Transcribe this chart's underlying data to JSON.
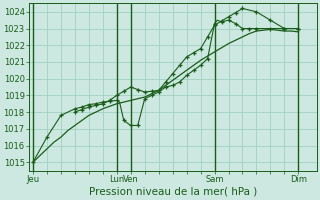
{
  "bg_color": "#cce8e0",
  "plot_bg_color": "#cce8e0",
  "grid_color": "#99ccbb",
  "line_color": "#1a5c1a",
  "tick_color": "#1a5c1a",
  "xlabel": "Pression niveau de la mer( hPa )",
  "xlabel_fontsize": 7.5,
  "tick_fontsize": 6.0,
  "ylim": [
    1014.5,
    1024.5
  ],
  "yticks": [
    1015,
    1016,
    1017,
    1018,
    1019,
    1020,
    1021,
    1022,
    1023,
    1024
  ],
  "xlim": [
    -0.3,
    20.3
  ],
  "xtick_labels": [
    "Jeu",
    "",
    "",
    "",
    "",
    "",
    "Lun",
    "Ven",
    "",
    "",
    "",
    "",
    "",
    "Sam",
    "",
    "",
    "",
    "",
    "",
    "Dim"
  ],
  "xtick_positions": [
    0,
    1,
    2,
    3,
    4,
    5,
    6,
    7,
    8,
    9,
    10,
    11,
    12,
    13,
    14,
    15,
    16,
    17,
    18,
    19
  ],
  "vlines_dark": [
    0,
    6,
    7,
    13,
    19
  ],
  "line1_x": [
    0,
    0.5,
    1,
    1.5,
    2,
    2.5,
    3,
    3.5,
    4,
    4.5,
    5,
    5.5,
    6,
    6.5,
    7,
    7.5,
    8,
    8.5,
    9,
    9.5,
    10,
    10.5,
    11,
    11.5,
    12,
    12.5,
    13,
    13.5,
    14,
    14.5,
    15,
    15.5,
    16,
    16.5,
    17,
    17.5,
    18,
    18.5,
    19
  ],
  "line1_y": [
    1015.0,
    1015.4,
    1015.8,
    1016.2,
    1016.5,
    1016.9,
    1017.2,
    1017.5,
    1017.8,
    1018.0,
    1018.2,
    1018.35,
    1018.5,
    1018.6,
    1018.7,
    1018.8,
    1018.9,
    1019.1,
    1019.3,
    1019.6,
    1019.9,
    1020.2,
    1020.5,
    1020.8,
    1021.1,
    1021.35,
    1021.6,
    1021.85,
    1022.1,
    1022.3,
    1022.5,
    1022.7,
    1022.85,
    1022.9,
    1022.95,
    1022.9,
    1022.85,
    1022.85,
    1022.8
  ],
  "line2_x": [
    0,
    1,
    2,
    3,
    3.5,
    4,
    4.5,
    5,
    5.5,
    6,
    6.2,
    6.5,
    7,
    7.5,
    8,
    8.5,
    9,
    9.5,
    10,
    10.5,
    11,
    11.5,
    12,
    12.5,
    13,
    13.2,
    13.5,
    14,
    14.5,
    15,
    15.5,
    16,
    16.5,
    17,
    17.5,
    18,
    18.5,
    19
  ],
  "line2_y": [
    1015.0,
    1016.5,
    1017.8,
    1018.2,
    1018.3,
    1018.45,
    1018.5,
    1018.6,
    1018.65,
    1018.7,
    1018.6,
    1017.5,
    1017.2,
    1017.2,
    1018.8,
    1019.0,
    1019.2,
    1019.5,
    1019.6,
    1019.8,
    1020.2,
    1020.5,
    1020.8,
    1021.2,
    1023.3,
    1023.5,
    1023.4,
    1023.5,
    1023.3,
    1023.0,
    1023.0,
    1023.0,
    1023.0,
    1023.0,
    1023.0,
    1023.0,
    1023.0,
    1023.0
  ],
  "line2_markers_x": [
    0,
    1,
    2,
    3,
    3.5,
    4,
    4.5,
    5,
    5.5,
    6,
    6.5,
    7,
    7.5,
    8,
    8.5,
    9,
    9.5,
    10,
    10.5,
    11,
    11.5,
    12,
    12.5,
    13,
    13.5,
    14,
    14.5,
    15,
    15.5,
    16,
    17,
    18,
    19
  ],
  "line2_markers_y": [
    1015.0,
    1016.5,
    1017.8,
    1018.2,
    1018.3,
    1018.45,
    1018.5,
    1018.6,
    1018.65,
    1018.7,
    1017.5,
    1017.2,
    1017.2,
    1018.8,
    1019.0,
    1019.2,
    1019.5,
    1019.6,
    1019.8,
    1020.2,
    1020.5,
    1020.8,
    1021.2,
    1023.3,
    1023.4,
    1023.5,
    1023.3,
    1023.0,
    1023.0,
    1023.0,
    1023.0,
    1023.0,
    1023.0
  ],
  "line3_x": [
    3,
    3.5,
    4,
    4.5,
    5,
    5.5,
    6,
    6.5,
    7,
    7.5,
    8,
    8.5,
    9,
    9.5,
    10,
    10.5,
    11,
    11.5,
    12,
    12.5,
    13,
    13.5,
    14,
    14.5,
    15,
    15.5,
    16,
    16.5,
    17,
    17.5,
    18,
    18.5,
    19
  ],
  "line3_y": [
    1018.0,
    1018.15,
    1018.3,
    1018.4,
    1018.5,
    1018.7,
    1019.0,
    1019.25,
    1019.5,
    1019.35,
    1019.2,
    1019.25,
    1019.3,
    1019.8,
    1020.3,
    1020.8,
    1021.3,
    1021.55,
    1021.8,
    1022.5,
    1023.2,
    1023.45,
    1023.7,
    1023.95,
    1024.2,
    1024.1,
    1024.0,
    1023.75,
    1023.5,
    1023.25,
    1023.0,
    1023.0,
    1023.0
  ],
  "line3_markers_x": [
    3,
    3.5,
    4,
    4.5,
    5,
    5.5,
    6,
    6.5,
    7,
    7.5,
    8,
    8.5,
    9,
    9.5,
    10,
    10.5,
    11,
    11.5,
    12,
    12.5,
    13,
    13.5,
    14,
    14.5,
    15,
    16,
    17,
    18,
    19
  ],
  "line3_markers_y": [
    1018.0,
    1018.15,
    1018.3,
    1018.4,
    1018.5,
    1018.7,
    1019.0,
    1019.25,
    1019.5,
    1019.35,
    1019.2,
    1019.25,
    1019.3,
    1019.8,
    1020.3,
    1020.8,
    1021.3,
    1021.55,
    1021.8,
    1022.5,
    1023.2,
    1023.45,
    1023.7,
    1023.95,
    1024.2,
    1024.0,
    1023.5,
    1023.0,
    1023.0
  ]
}
